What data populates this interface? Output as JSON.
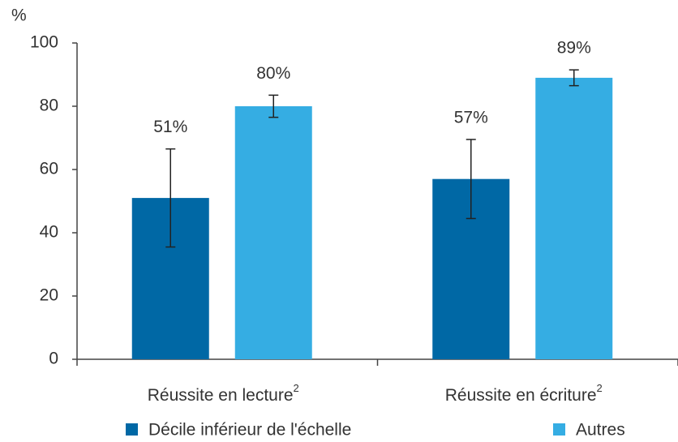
{
  "chart_data": {
    "type": "bar",
    "ylabel": "%",
    "categories": [
      "Réussite en lecture",
      "Réussite en écriture"
    ],
    "category_superscripts": [
      "2",
      "2"
    ],
    "series": [
      {
        "name": "Décile inférieur de l'échelle",
        "color": "#0068a5",
        "values": [
          51,
          57
        ],
        "value_labels": [
          "51%",
          "57%"
        ],
        "errors": [
          15.5,
          12.5
        ]
      },
      {
        "name": "Autres",
        "color": "#35ade3",
        "values": [
          80,
          89
        ],
        "value_labels": [
          "80%",
          "89%"
        ],
        "errors": [
          3.5,
          2.5
        ]
      }
    ],
    "ylim": [
      0,
      100
    ],
    "yticks": [
      0,
      20,
      40,
      60,
      80,
      100
    ],
    "grid": false
  }
}
